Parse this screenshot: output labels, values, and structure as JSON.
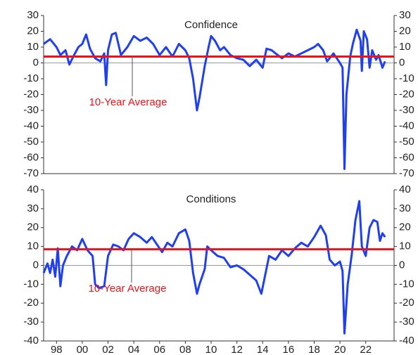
{
  "chart_data": [
    {
      "type": "line",
      "title": "Confidence",
      "xlim": [
        1997,
        2024.2
      ],
      "ylim": [
        -70,
        30
      ],
      "yticks": [
        -70,
        -60,
        -50,
        -40,
        -30,
        -20,
        -10,
        0,
        10,
        20,
        30
      ],
      "x": [
        1997.0,
        1997.5,
        1998.0,
        1998.3,
        1998.7,
        1999.0,
        1999.3,
        1999.7,
        2000.0,
        2000.3,
        2000.6,
        2001.0,
        2001.4,
        2001.7,
        2001.85,
        2002.0,
        2002.3,
        2002.6,
        2003.0,
        2003.5,
        2004.0,
        2004.5,
        2005.0,
        2005.5,
        2006.0,
        2006.5,
        2007.0,
        2007.5,
        2008.0,
        2008.3,
        2008.6,
        2008.9,
        2009.1,
        2009.5,
        2009.8,
        2010.0,
        2010.3,
        2010.7,
        2011.0,
        2011.5,
        2012.0,
        2012.5,
        2013.0,
        2013.5,
        2014.0,
        2014.3,
        2014.7,
        2015.0,
        2015.5,
        2016.0,
        2016.5,
        2017.0,
        2017.5,
        2018.0,
        2018.3,
        2018.7,
        2019.0,
        2019.5,
        2020.0,
        2020.2,
        2020.35,
        2020.5,
        2020.8,
        2021.0,
        2021.3,
        2021.6,
        2021.7,
        2021.85,
        2022.1,
        2022.3,
        2022.5,
        2022.8,
        2023.0,
        2023.3,
        2023.5
      ],
      "series": [
        {
          "name": "Confidence",
          "color": "#1f3ff0",
          "values": [
            12,
            15,
            10,
            5,
            8,
            -1,
            4,
            10,
            12,
            18,
            9,
            3,
            1,
            6,
            -14,
            8,
            18,
            19,
            5,
            10,
            17,
            14,
            16,
            12,
            5,
            10,
            4,
            12,
            8,
            3,
            -10,
            -30,
            -22,
            -2,
            10,
            17,
            14,
            8,
            10,
            5,
            3,
            2,
            -2,
            2,
            -3,
            9,
            8,
            6,
            3,
            6,
            4,
            6,
            8,
            10,
            12,
            8,
            1,
            6,
            0,
            -3,
            -67,
            -20,
            4,
            12,
            21,
            14,
            -5,
            20,
            15,
            -3,
            8,
            2,
            5,
            -3,
            1
          ]
        }
      ],
      "reference_line": {
        "label": "10-Year Average",
        "value": 4,
        "color": "#e8141c"
      }
    },
    {
      "type": "line",
      "title": "Conditions",
      "xlim": [
        1997,
        2024.2
      ],
      "ylim": [
        -40,
        40
      ],
      "yticks": [
        -40,
        -30,
        -20,
        -10,
        0,
        10,
        20,
        30,
        40
      ],
      "xticks": [
        {
          "value": 1998,
          "label": "98"
        },
        {
          "value": 2000,
          "label": "00"
        },
        {
          "value": 2002,
          "label": "02"
        },
        {
          "value": 2004,
          "label": "04"
        },
        {
          "value": 2006,
          "label": "06"
        },
        {
          "value": 2008,
          "label": "08"
        },
        {
          "value": 2010,
          "label": "10"
        },
        {
          "value": 2012,
          "label": "12"
        },
        {
          "value": 2014,
          "label": "14"
        },
        {
          "value": 2016,
          "label": "16"
        },
        {
          "value": 2018,
          "label": "18"
        },
        {
          "value": 2020,
          "label": "20"
        },
        {
          "value": 2022,
          "label": "22"
        }
      ],
      "x": [
        1997.0,
        1997.3,
        1997.5,
        1997.7,
        1997.9,
        1998.1,
        1998.3,
        1998.5,
        1998.8,
        1999.2,
        1999.6,
        2000.0,
        2000.4,
        2000.8,
        2001.0,
        2001.3,
        2001.7,
        2002.0,
        2002.4,
        2002.8,
        2003.2,
        2003.6,
        2004.0,
        2004.5,
        2005.0,
        2005.4,
        2005.8,
        2006.2,
        2006.6,
        2007.0,
        2007.5,
        2008.0,
        2008.3,
        2008.6,
        2008.9,
        2009.1,
        2009.5,
        2009.7,
        2010.0,
        2010.5,
        2011.0,
        2011.5,
        2012.0,
        2012.5,
        2013.0,
        2013.5,
        2013.9,
        2014.2,
        2014.5,
        2015.0,
        2015.5,
        2016.0,
        2016.5,
        2017.0,
        2017.5,
        2018.0,
        2018.5,
        2018.9,
        2019.2,
        2019.6,
        2020.0,
        2020.2,
        2020.35,
        2020.6,
        2020.9,
        2021.2,
        2021.5,
        2021.7,
        2022.0,
        2022.3,
        2022.6,
        2022.9,
        2023.1,
        2023.3,
        2023.5
      ],
      "series": [
        {
          "name": "Conditions",
          "color": "#1f3ff0",
          "values": [
            -4,
            1,
            -4,
            3,
            -6,
            9,
            -11,
            0,
            5,
            10,
            8,
            14,
            8,
            5,
            -10,
            -12,
            -11,
            5,
            11,
            10,
            8,
            14,
            17,
            15,
            12,
            15,
            11,
            7,
            12,
            10,
            17,
            19,
            13,
            -4,
            -15,
            -10,
            -2,
            10,
            8,
            5,
            4,
            -1,
            0,
            -2,
            -5,
            -8,
            -15,
            -5,
            5,
            3,
            8,
            5,
            9,
            12,
            10,
            15,
            21,
            16,
            3,
            0,
            2,
            -3,
            -36,
            -10,
            5,
            24,
            34,
            10,
            5,
            20,
            24,
            23,
            13,
            17,
            15
          ]
        }
      ],
      "reference_line": {
        "label": "10-Year Average",
        "value": 8.5,
        "color": "#e8141c"
      }
    }
  ]
}
